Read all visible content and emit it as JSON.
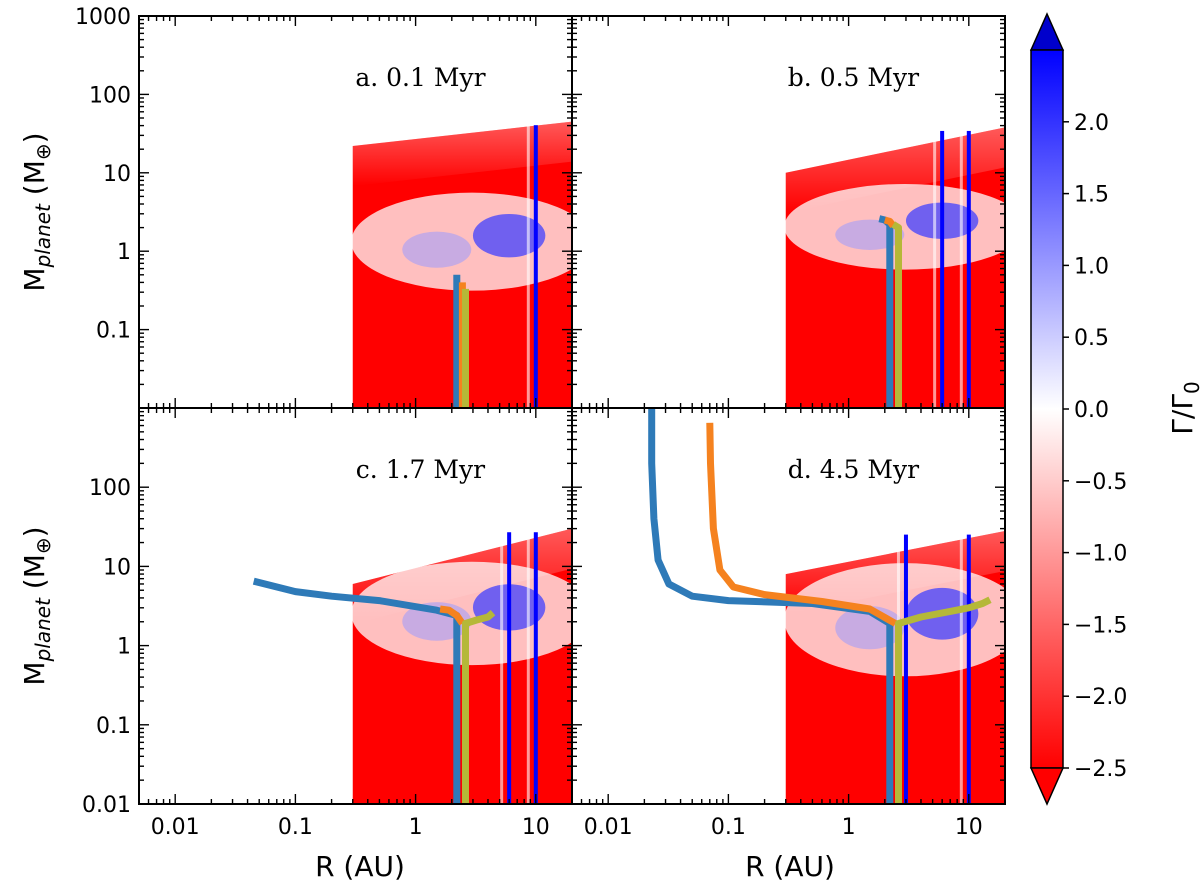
{
  "chart_data": {
    "type": "heatmap",
    "layout": "2x2 panels sharing axes",
    "xlabel": "R (AU)",
    "ylabel_main": "M",
    "ylabel_sub": "planet",
    "ylabel_unit_open": " (M",
    "ylabel_unit_sym": "⊕",
    "ylabel_unit_close": ")",
    "xscale": "log",
    "yscale": "log",
    "xlim": [
      0.005,
      20
    ],
    "ylim": [
      0.01,
      1000
    ],
    "x_ticks": [
      {
        "value": 0.01,
        "label": "0.01"
      },
      {
        "value": 0.1,
        "label": "0.1"
      },
      {
        "value": 1,
        "label": "1"
      },
      {
        "value": 10,
        "label": "10"
      }
    ],
    "y_ticks_top": [
      {
        "value": 1000,
        "label": "1000"
      },
      {
        "value": 100,
        "label": "100"
      },
      {
        "value": 10,
        "label": "10"
      },
      {
        "value": 1,
        "label": "1"
      },
      {
        "value": 0.1,
        "label": "0.1"
      }
    ],
    "y_ticks_bottom": [
      {
        "value": 100,
        "label": "100"
      },
      {
        "value": 10,
        "label": "10"
      },
      {
        "value": 1,
        "label": "1"
      },
      {
        "value": 0.1,
        "label": "0.1"
      },
      {
        "value": 0.01,
        "label": "0.01"
      }
    ],
    "colorbar": {
      "label_main": "Γ/Γ",
      "label_sub": "0",
      "range": [
        -2.5,
        2.5
      ],
      "extend": "both",
      "colors": {
        "negative": "#ff0000",
        "zero": "#ffffff",
        "positive": "#0000ff"
      },
      "ticks": [
        {
          "value": 2.0,
          "label": "2.0"
        },
        {
          "value": 1.5,
          "label": "1.5"
        },
        {
          "value": 1.0,
          "label": "1.0"
        },
        {
          "value": 0.5,
          "label": "0.5"
        },
        {
          "value": 0.0,
          "label": "0.0"
        },
        {
          "value": -0.5,
          "label": "−0.5"
        },
        {
          "value": -1.0,
          "label": "−1.0"
        },
        {
          "value": -1.5,
          "label": "−1.5"
        },
        {
          "value": -2.0,
          "label": "−2.0"
        },
        {
          "value": -2.5,
          "label": "−2.5"
        }
      ]
    },
    "series_colors": {
      "blue": "#2e7ab8",
      "orange": "#f5821f",
      "olive": "#b5b838"
    },
    "panels": [
      {
        "id": "a",
        "title": "a. 0.1 Myr",
        "field_extent": {
          "r_min": 0.3,
          "r_max": 20,
          "m_top_inner": 22,
          "m_top_outer": 45
        },
        "blue_band": {
          "m_low": 0.7,
          "m_high": 2.5
        },
        "ring_radii": [
          10
        ],
        "tracks": [
          {
            "name": "blue",
            "points": [
              [
                2.2,
                0.01
              ],
              [
                2.2,
                0.5
              ]
            ]
          },
          {
            "name": "orange",
            "points": [
              [
                2.45,
                0.01
              ],
              [
                2.45,
                0.4
              ]
            ]
          },
          {
            "name": "olive",
            "points": [
              [
                2.6,
                0.01
              ],
              [
                2.6,
                0.33
              ]
            ]
          }
        ]
      },
      {
        "id": "b",
        "title": "b. 0.5 Myr",
        "field_extent": {
          "r_min": 0.3,
          "r_max": 20,
          "m_top_inner": 10,
          "m_top_outer": 38
        },
        "blue_band": {
          "m_low": 1.2,
          "m_high": 3.5
        },
        "ring_radii": [
          6,
          10
        ],
        "tracks": [
          {
            "name": "blue",
            "points": [
              [
                2.2,
                0.01
              ],
              [
                2.2,
                2.2
              ],
              [
                2.0,
                2.5
              ],
              [
                1.8,
                2.6
              ]
            ]
          },
          {
            "name": "orange",
            "points": [
              [
                2.35,
                2.1
              ],
              [
                2.2,
                2.4
              ],
              [
                2.0,
                2.5
              ]
            ]
          },
          {
            "name": "olive",
            "points": [
              [
                2.6,
                0.01
              ],
              [
                2.6,
                2.0
              ],
              [
                2.35,
                2.2
              ]
            ]
          }
        ]
      },
      {
        "id": "c",
        "title": "c. 1.7 Myr",
        "field_extent": {
          "r_min": 0.3,
          "r_max": 20,
          "m_top_inner": 6,
          "m_top_outer": 30
        },
        "blue_band": {
          "m_low": 1.3,
          "m_high": 5
        },
        "ring_radii": [
          6,
          10
        ],
        "tracks": [
          {
            "name": "blue",
            "points": [
              [
                2.2,
                0.01
              ],
              [
                2.2,
                2.4
              ],
              [
                1.5,
                2.8
              ],
              [
                0.5,
                3.7
              ],
              [
                0.2,
                4.2
              ],
              [
                0.1,
                4.8
              ],
              [
                0.045,
                6.5
              ]
            ]
          },
          {
            "name": "orange",
            "points": [
              [
                2.45,
                1.9
              ],
              [
                2.2,
                2.4
              ],
              [
                1.9,
                2.8
              ],
              [
                1.6,
                2.9
              ]
            ]
          },
          {
            "name": "olive",
            "points": [
              [
                2.6,
                0.01
              ],
              [
                2.6,
                1.9
              ],
              [
                3.2,
                2.1
              ],
              [
                4.0,
                2.3
              ],
              [
                4.4,
                2.6
              ]
            ]
          }
        ]
      },
      {
        "id": "d",
        "title": "d. 4.5 Myr",
        "field_extent": {
          "r_min": 0.3,
          "r_max": 20,
          "m_top_inner": 8,
          "m_top_outer": 28
        },
        "blue_band": {
          "m_low": 1.0,
          "m_high": 4.5
        },
        "ring_radii": [
          3,
          10
        ],
        "tracks": [
          {
            "name": "blue",
            "points": [
              [
                2.2,
                0.01
              ],
              [
                2.2,
                1.9
              ],
              [
                1.5,
                2.7
              ],
              [
                0.5,
                3.4
              ],
              [
                0.1,
                3.7
              ],
              [
                0.05,
                4.2
              ],
              [
                0.032,
                6
              ],
              [
                0.026,
                12
              ],
              [
                0.024,
                40
              ],
              [
                0.023,
                200
              ],
              [
                0.023,
                1000
              ]
            ]
          },
          {
            "name": "orange",
            "points": [
              [
                2.45,
                1.9
              ],
              [
                1.5,
                2.9
              ],
              [
                0.6,
                3.6
              ],
              [
                0.2,
                4.4
              ],
              [
                0.11,
                5.5
              ],
              [
                0.085,
                9
              ],
              [
                0.075,
                30
              ],
              [
                0.071,
                200
              ],
              [
                0.07,
                650
              ]
            ]
          },
          {
            "name": "olive",
            "points": [
              [
                2.6,
                0.01
              ],
              [
                2.6,
                1.9
              ],
              [
                4,
                2.3
              ],
              [
                7,
                2.7
              ],
              [
                10,
                3.0
              ],
              [
                13,
                3.4
              ],
              [
                15,
                3.8
              ]
            ]
          }
        ]
      }
    ]
  }
}
